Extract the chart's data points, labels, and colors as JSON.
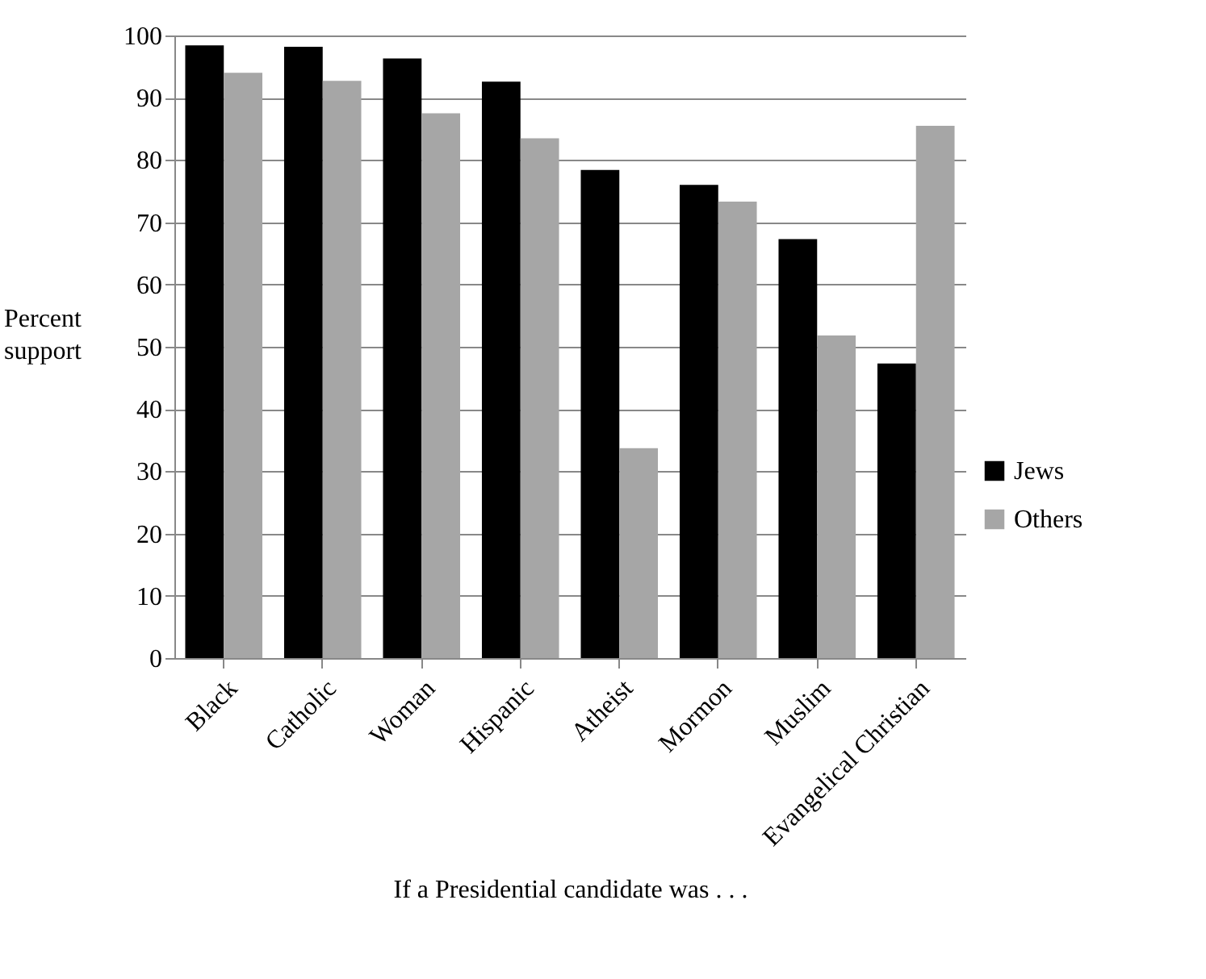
{
  "chart_data": {
    "type": "bar",
    "xlabel": "If a Presidential candidate was . . .",
    "ylabel": "Percent support",
    "categories": [
      "Black",
      "Catholic",
      "Woman",
      "Hispanic",
      "Atheist",
      "Mormon",
      "Muslim",
      "Evangelical Christian"
    ],
    "series": [
      {
        "name": "Jews",
        "color": "#000000",
        "values": [
          98.4,
          98.2,
          96.3,
          92.6,
          78.4,
          76.0,
          67.3,
          47.3
        ]
      },
      {
        "name": "Others",
        "color": "#a6a6a6",
        "values": [
          94.0,
          92.7,
          87.5,
          83.5,
          33.7,
          73.3,
          51.8,
          85.5
        ]
      }
    ],
    "ylim": [
      0,
      100
    ],
    "yticks": [
      0,
      10,
      20,
      30,
      40,
      50,
      60,
      70,
      80,
      90,
      100
    ],
    "grid": "y",
    "legend": "right"
  }
}
